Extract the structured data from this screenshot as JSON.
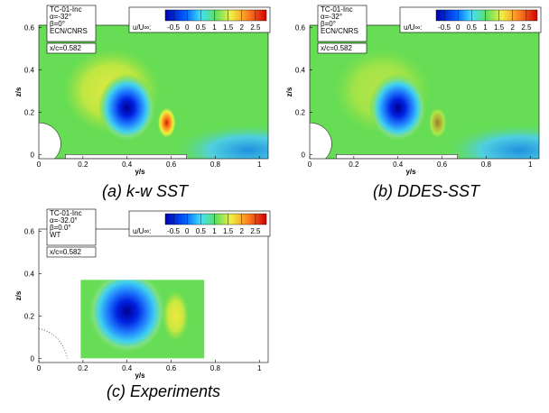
{
  "panels": [
    {
      "caption": "(a)   k-w SST",
      "info": [
        "TC-01-Inc",
        "α=-32°",
        "β=0°",
        "ECN/CNRS"
      ],
      "station": "x/c=0.582",
      "colorbar": {
        "label": "u/U∞:",
        "ticks": [
          -0.5,
          0,
          0.5,
          1,
          1.5,
          2,
          2.5
        ],
        "range": [
          -0.8,
          2.9
        ]
      },
      "x_label": "y/s",
      "y_label": "z/s",
      "xlim": [
        0,
        1.04
      ],
      "ylim": [
        -0.02,
        0.61
      ],
      "xticks": [
        0,
        0.2,
        0.4,
        0.6,
        0.8,
        1
      ],
      "yticks": [
        0,
        0.2,
        0.4,
        0.6
      ]
    },
    {
      "caption": "(b)   DDES-SST",
      "info": [
        "TC-01-Inc",
        "α=-32°",
        "β=0°",
        "ECN/CNRS"
      ],
      "station": "x/c=0.582",
      "colorbar": {
        "label": "u/U∞:",
        "ticks": [
          -0.5,
          0,
          0.5,
          1,
          1.5,
          2,
          2.5
        ],
        "range": [
          -0.8,
          2.9
        ]
      },
      "x_label": "y/s",
      "y_label": "z/s",
      "xlim": [
        0,
        1.04
      ],
      "ylim": [
        -0.02,
        0.61
      ],
      "xticks": [
        0,
        0.2,
        0.4,
        0.6,
        0.8,
        1
      ],
      "yticks": [
        0,
        0.2,
        0.4,
        0.6
      ]
    },
    {
      "caption": "(c) Experiments",
      "info": [
        "TC-01-Inc",
        "α=-32.0°",
        "β=0.0°",
        "WT"
      ],
      "station": "x/c=0.582",
      "colorbar": {
        "label": "u/U∞:",
        "ticks": [
          -0.5,
          0,
          0.5,
          1,
          1.5,
          2,
          2.5
        ],
        "range": [
          -0.8,
          2.9
        ]
      },
      "x_label": "y/s",
      "y_label": "z/s",
      "xlim": [
        0,
        1.04
      ],
      "ylim": [
        -0.02,
        0.61
      ],
      "xticks": [
        0,
        0.2,
        0.4,
        0.6,
        0.8,
        1
      ],
      "yticks": [
        0,
        0.2,
        0.4,
        0.6
      ]
    }
  ]
}
